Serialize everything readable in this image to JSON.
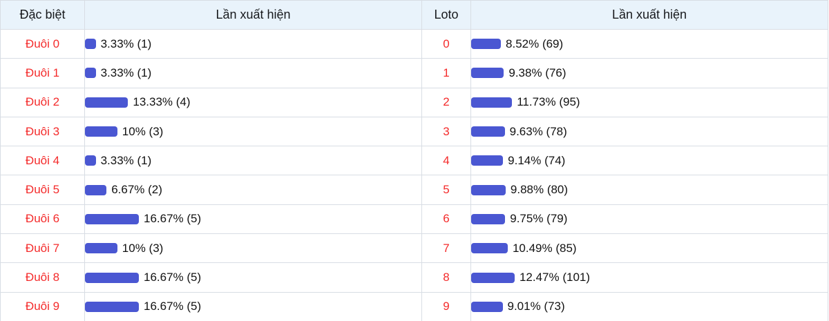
{
  "colors": {
    "bar_fill": "#4a57d2",
    "row_label_red": "#f42b2b",
    "header_bg": "#e9f3fb",
    "border": "#d8dde4"
  },
  "left_table": {
    "category_header": "Đặc biệt",
    "frequency_header": "Lần xuất hiện",
    "rows": [
      {
        "label": "Đuôi 0",
        "percent": 3.33,
        "count": 1,
        "display": "3.33% (1)"
      },
      {
        "label": "Đuôi 1",
        "percent": 3.33,
        "count": 1,
        "display": "3.33% (1)"
      },
      {
        "label": "Đuôi 2",
        "percent": 13.33,
        "count": 4,
        "display": "13.33% (4)"
      },
      {
        "label": "Đuôi 3",
        "percent": 10,
        "count": 3,
        "display": "10% (3)"
      },
      {
        "label": "Đuôi 4",
        "percent": 3.33,
        "count": 1,
        "display": "3.33% (1)"
      },
      {
        "label": "Đuôi 5",
        "percent": 6.67,
        "count": 2,
        "display": "6.67% (2)"
      },
      {
        "label": "Đuôi 6",
        "percent": 16.67,
        "count": 5,
        "display": "16.67% (5)"
      },
      {
        "label": "Đuôi 7",
        "percent": 10,
        "count": 3,
        "display": "10% (3)"
      },
      {
        "label": "Đuôi 8",
        "percent": 16.67,
        "count": 5,
        "display": "16.67% (5)"
      },
      {
        "label": "Đuôi 9",
        "percent": 16.67,
        "count": 5,
        "display": "16.67% (5)"
      }
    ]
  },
  "right_table": {
    "category_header": "Loto",
    "frequency_header": "Lần xuất hiện",
    "rows": [
      {
        "label": "0",
        "percent": 8.52,
        "count": 69,
        "display": "8.52% (69)"
      },
      {
        "label": "1",
        "percent": 9.38,
        "count": 76,
        "display": "9.38% (76)"
      },
      {
        "label": "2",
        "percent": 11.73,
        "count": 95,
        "display": "11.73% (95)"
      },
      {
        "label": "3",
        "percent": 9.63,
        "count": 78,
        "display": "9.63% (78)"
      },
      {
        "label": "4",
        "percent": 9.14,
        "count": 74,
        "display": "9.14% (74)"
      },
      {
        "label": "5",
        "percent": 9.88,
        "count": 80,
        "display": "9.88% (80)"
      },
      {
        "label": "6",
        "percent": 9.75,
        "count": 79,
        "display": "9.75% (79)"
      },
      {
        "label": "7",
        "percent": 10.49,
        "count": 85,
        "display": "10.49% (85)"
      },
      {
        "label": "8",
        "percent": 12.47,
        "count": 101,
        "display": "12.47% (101)"
      },
      {
        "label": "9",
        "percent": 9.01,
        "count": 73,
        "display": "9.01% (73)"
      }
    ]
  },
  "chart_data": [
    {
      "type": "bar",
      "title": "Đặc biệt — Lần xuất hiện",
      "categories": [
        "Đuôi 0",
        "Đuôi 1",
        "Đuôi 2",
        "Đuôi 3",
        "Đuôi 4",
        "Đuôi 5",
        "Đuôi 6",
        "Đuôi 7",
        "Đuôi 8",
        "Đuôi 9"
      ],
      "values": [
        3.33,
        3.33,
        13.33,
        10,
        3.33,
        6.67,
        16.67,
        10,
        16.67,
        16.67
      ],
      "counts": [
        1,
        1,
        4,
        3,
        1,
        2,
        5,
        3,
        5,
        5
      ],
      "value_unit": "%",
      "orientation": "horizontal",
      "bar_color": "#4a57d2",
      "data_labels": "percent (count)",
      "axis_visible": false,
      "grid": false,
      "legend": "none"
    },
    {
      "type": "bar",
      "title": "Loto — Lần xuất hiện",
      "categories": [
        "0",
        "1",
        "2",
        "3",
        "4",
        "5",
        "6",
        "7",
        "8",
        "9"
      ],
      "values": [
        8.52,
        9.38,
        11.73,
        9.63,
        9.14,
        9.88,
        9.75,
        10.49,
        12.47,
        9.01
      ],
      "counts": [
        69,
        76,
        95,
        78,
        74,
        80,
        79,
        85,
        101,
        73
      ],
      "value_unit": "%",
      "orientation": "horizontal",
      "bar_color": "#4a57d2",
      "data_labels": "percent (count)",
      "axis_visible": false,
      "grid": false,
      "legend": "none"
    }
  ]
}
